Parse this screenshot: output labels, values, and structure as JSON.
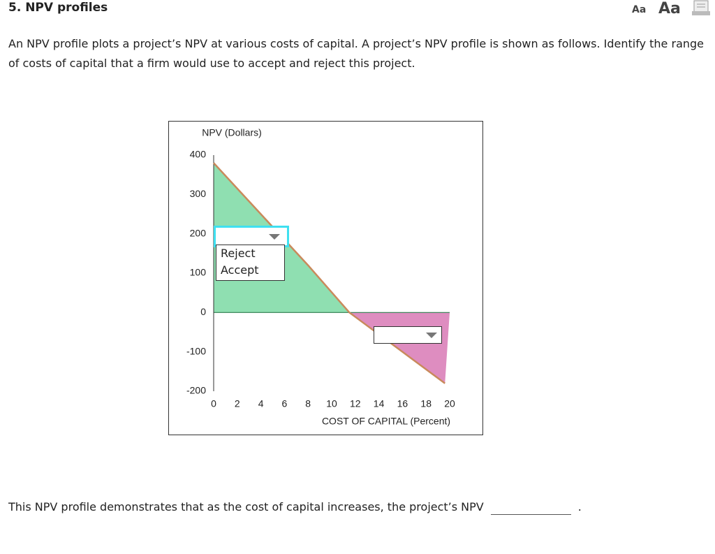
{
  "header": {
    "title": "5. NPV profiles",
    "font_small": "Aa",
    "font_large": "Aa"
  },
  "question": {
    "text": "An NPV profile plots a project’s NPV at various costs of capital. A project’s NPV profile is shown as follows. Identify the range of costs of capital that a firm would use to accept and reject this project."
  },
  "chart_data": {
    "type": "line",
    "title": "NPV (Dollars)",
    "x_label": "COST OF CAPITAL (Percent)",
    "x": [
      0,
      4,
      8,
      11.5,
      16,
      19.6
    ],
    "values": [
      380,
      250,
      120,
      0,
      -100,
      -180
    ],
    "color": "#c98a5c",
    "positive_fill": "#8fdfb1",
    "negative_fill": "#de8dc0",
    "xlim": [
      0,
      20
    ],
    "xticks": [
      0,
      2,
      4,
      6,
      8,
      10,
      12,
      14,
      16,
      18,
      20
    ],
    "ylim": [
      -200,
      400
    ],
    "yticks": [
      400,
      300,
      200,
      100,
      0,
      -100,
      -200
    ]
  },
  "dropdown": {
    "options": [
      "Reject",
      "Accept"
    ]
  },
  "footer": {
    "text": "This NPV profile demonstrates that as the cost of capital increases, the project’s NPV",
    "end": "."
  }
}
